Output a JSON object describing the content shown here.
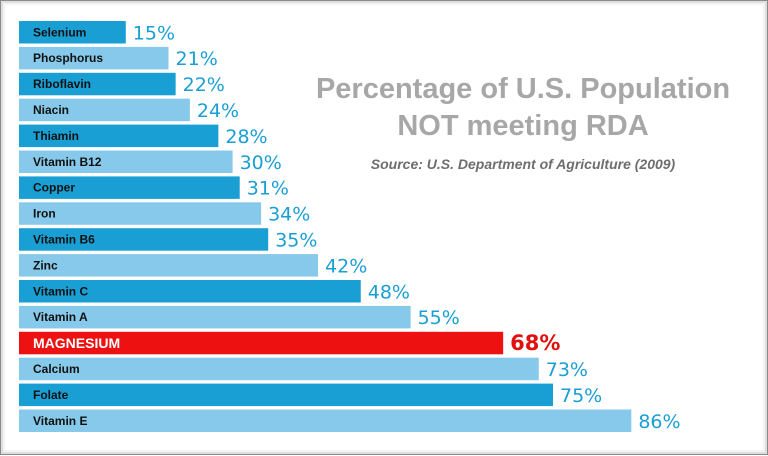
{
  "colors": {
    "dark_bar": "#1a9fd4",
    "light_bar": "#86c9ea",
    "highlight_bar": "#ee1111",
    "value_text": "#1a9fd4",
    "highlight_value_text": "#e0100e",
    "title_text": "#a7a7a7",
    "source_text": "#6e6e6e"
  },
  "chart_data": {
    "type": "bar",
    "orientation": "horizontal",
    "title": "Percentage of U.S. Population NOT meeting RDA",
    "subtitle": "Source: U.S. Department of Agriculture (2009)",
    "xlabel": "",
    "ylabel": "",
    "xlim": [
      0,
      100
    ],
    "grid": false,
    "legend": "none",
    "highlight": "MAGNESIUM",
    "categories": [
      "Selenium",
      "Phosphorus",
      "Riboflavin",
      "Niacin",
      "Thiamin",
      "Vitamin B12",
      "Copper",
      "Iron",
      "Vitamin B6",
      "Zinc",
      "Vitamin C",
      "Vitamin A",
      "MAGNESIUM",
      "Calcium",
      "Folate",
      "Vitamin E"
    ],
    "values": [
      15,
      21,
      22,
      24,
      28,
      30,
      31,
      34,
      35,
      42,
      48,
      55,
      68,
      73,
      75,
      86
    ],
    "value_labels": [
      "15%",
      "21%",
      "22%",
      "24%",
      "28%",
      "30%",
      "31%",
      "34%",
      "35%",
      "42%",
      "48%",
      "55%",
      "68%",
      "73%",
      "75%",
      "86%"
    ]
  }
}
